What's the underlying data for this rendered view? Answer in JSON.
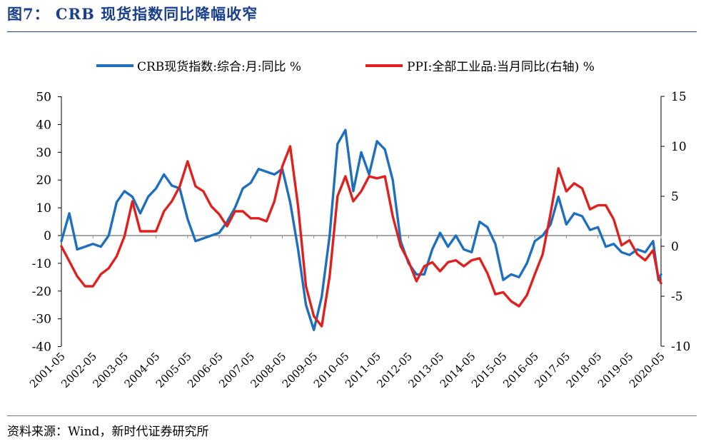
{
  "page": {
    "title": "图7：  CRB 现货指数同比降幅收窄",
    "source": "资料来源：Wind，新时代证券研究所"
  },
  "chart_data": {
    "type": "line",
    "title": "CRB 现货指数同比降幅收窄",
    "legend_position": "top-center",
    "left_axis": {
      "min": -40,
      "max": 50,
      "ticks": [
        50,
        40,
        30,
        20,
        10,
        0,
        -10,
        -20,
        -30,
        -40
      ]
    },
    "right_axis": {
      "min": -10,
      "max": 15,
      "ticks": [
        15,
        10,
        5,
        0,
        -5,
        -10
      ]
    },
    "x_range": [
      "2001-05",
      "2020-05"
    ],
    "x_ticks": [
      "2001-05",
      "2002-05",
      "2003-05",
      "2004-05",
      "2005-05",
      "2006-05",
      "2007-05",
      "2008-05",
      "2009-05",
      "2010-05",
      "2011-05",
      "2012-05",
      "2013-05",
      "2014-05",
      "2015-05",
      "2016-05",
      "2017-05",
      "2018-05",
      "2019-05",
      "2020-05"
    ],
    "series": [
      {
        "name": "CRB现货指数:综合:月:同比 %",
        "axis": "left",
        "color": "#1f6fbf",
        "points": [
          [
            "2001-05",
            -2
          ],
          [
            "2001-08",
            8
          ],
          [
            "2001-11",
            -5
          ],
          [
            "2002-02",
            -4
          ],
          [
            "2002-05",
            -3
          ],
          [
            "2002-08",
            -4
          ],
          [
            "2002-11",
            0
          ],
          [
            "2003-02",
            12
          ],
          [
            "2003-05",
            16
          ],
          [
            "2003-08",
            14
          ],
          [
            "2003-11",
            8
          ],
          [
            "2004-02",
            14
          ],
          [
            "2004-05",
            17
          ],
          [
            "2004-08",
            22
          ],
          [
            "2004-11",
            18
          ],
          [
            "2005-02",
            17
          ],
          [
            "2005-05",
            6
          ],
          [
            "2005-08",
            -2
          ],
          [
            "2005-11",
            -1
          ],
          [
            "2006-02",
            0
          ],
          [
            "2006-05",
            1
          ],
          [
            "2006-08",
            5
          ],
          [
            "2006-11",
            10
          ],
          [
            "2007-02",
            17
          ],
          [
            "2007-05",
            19
          ],
          [
            "2007-08",
            24
          ],
          [
            "2007-11",
            23
          ],
          [
            "2008-02",
            22
          ],
          [
            "2008-05",
            24
          ],
          [
            "2008-08",
            12
          ],
          [
            "2008-11",
            -5
          ],
          [
            "2009-02",
            -25
          ],
          [
            "2009-05",
            -34
          ],
          [
            "2009-08",
            -22
          ],
          [
            "2009-11",
            0
          ],
          [
            "2010-02",
            33
          ],
          [
            "2010-05",
            38
          ],
          [
            "2010-08",
            16
          ],
          [
            "2010-11",
            30
          ],
          [
            "2011-02",
            22
          ],
          [
            "2011-05",
            34
          ],
          [
            "2011-08",
            31
          ],
          [
            "2011-11",
            20
          ],
          [
            "2012-02",
            -2
          ],
          [
            "2012-05",
            -10
          ],
          [
            "2012-08",
            -14
          ],
          [
            "2012-11",
            -14
          ],
          [
            "2013-02",
            -5
          ],
          [
            "2013-05",
            1
          ],
          [
            "2013-08",
            -4
          ],
          [
            "2013-11",
            0
          ],
          [
            "2014-02",
            -5
          ],
          [
            "2014-05",
            -6
          ],
          [
            "2014-08",
            5
          ],
          [
            "2014-11",
            3
          ],
          [
            "2015-02",
            -3
          ],
          [
            "2015-05",
            -16
          ],
          [
            "2015-08",
            -14
          ],
          [
            "2015-11",
            -15
          ],
          [
            "2016-02",
            -10
          ],
          [
            "2016-05",
            -2
          ],
          [
            "2016-08",
            0
          ],
          [
            "2016-11",
            4
          ],
          [
            "2017-02",
            14
          ],
          [
            "2017-05",
            4
          ],
          [
            "2017-08",
            8
          ],
          [
            "2017-11",
            7
          ],
          [
            "2018-02",
            2
          ],
          [
            "2018-05",
            3
          ],
          [
            "2018-08",
            -4
          ],
          [
            "2018-11",
            -3
          ],
          [
            "2019-02",
            -6
          ],
          [
            "2019-05",
            -7
          ],
          [
            "2019-08",
            -5
          ],
          [
            "2019-11",
            -6
          ],
          [
            "2020-02",
            -2
          ],
          [
            "2020-04",
            -16
          ],
          [
            "2020-05",
            -14
          ]
        ]
      },
      {
        "name": "PPI:全部工业品:当月同比(右轴) %",
        "axis": "right",
        "color": "#e0201c",
        "points": [
          [
            "2001-05",
            0
          ],
          [
            "2001-08",
            -1.5
          ],
          [
            "2001-11",
            -3
          ],
          [
            "2002-02",
            -4
          ],
          [
            "2002-05",
            -4
          ],
          [
            "2002-08",
            -2.8
          ],
          [
            "2002-11",
            -2.2
          ],
          [
            "2003-02",
            -1
          ],
          [
            "2003-05",
            1
          ],
          [
            "2003-08",
            4.5
          ],
          [
            "2003-11",
            1.5
          ],
          [
            "2004-02",
            1.5
          ],
          [
            "2004-05",
            1.5
          ],
          [
            "2004-08",
            3.5
          ],
          [
            "2004-11",
            4.5
          ],
          [
            "2005-02",
            6
          ],
          [
            "2005-05",
            8.5
          ],
          [
            "2005-08",
            6
          ],
          [
            "2005-11",
            5.5
          ],
          [
            "2006-02",
            4
          ],
          [
            "2006-05",
            3.2
          ],
          [
            "2006-08",
            2
          ],
          [
            "2006-11",
            3.5
          ],
          [
            "2007-02",
            3.5
          ],
          [
            "2007-05",
            2.8
          ],
          [
            "2007-08",
            2.8
          ],
          [
            "2007-11",
            2.5
          ],
          [
            "2008-02",
            4.5
          ],
          [
            "2008-05",
            8
          ],
          [
            "2008-08",
            10
          ],
          [
            "2008-11",
            4
          ],
          [
            "2009-02",
            -4
          ],
          [
            "2009-05",
            -7
          ],
          [
            "2009-08",
            -8
          ],
          [
            "2009-11",
            -3
          ],
          [
            "2010-02",
            5
          ],
          [
            "2010-05",
            7
          ],
          [
            "2010-08",
            4.5
          ],
          [
            "2010-11",
            5.5
          ],
          [
            "2011-02",
            7
          ],
          [
            "2011-05",
            6.8
          ],
          [
            "2011-08",
            7
          ],
          [
            "2011-11",
            3
          ],
          [
            "2012-02",
            0
          ],
          [
            "2012-05",
            -1.5
          ],
          [
            "2012-08",
            -3.5
          ],
          [
            "2012-11",
            -2
          ],
          [
            "2013-02",
            -1.6
          ],
          [
            "2013-05",
            -2.5
          ],
          [
            "2013-08",
            -1.6
          ],
          [
            "2013-11",
            -1.4
          ],
          [
            "2014-02",
            -2
          ],
          [
            "2014-05",
            -1.4
          ],
          [
            "2014-08",
            -1.2
          ],
          [
            "2014-11",
            -2.7
          ],
          [
            "2015-02",
            -4.8
          ],
          [
            "2015-05",
            -4.6
          ],
          [
            "2015-08",
            -5.5
          ],
          [
            "2015-11",
            -6
          ],
          [
            "2016-02",
            -4.9
          ],
          [
            "2016-05",
            -2.8
          ],
          [
            "2016-08",
            -0.8
          ],
          [
            "2016-11",
            3.3
          ],
          [
            "2017-02",
            7.8
          ],
          [
            "2017-05",
            5.5
          ],
          [
            "2017-08",
            6.3
          ],
          [
            "2017-11",
            5.8
          ],
          [
            "2018-02",
            3.7
          ],
          [
            "2018-05",
            4.1
          ],
          [
            "2018-08",
            4.1
          ],
          [
            "2018-11",
            2.7
          ],
          [
            "2019-02",
            0.1
          ],
          [
            "2019-05",
            0.6
          ],
          [
            "2019-08",
            -0.8
          ],
          [
            "2019-11",
            -1.4
          ],
          [
            "2020-02",
            -0.4
          ],
          [
            "2020-04",
            -3.1
          ],
          [
            "2020-05",
            -3.7
          ]
        ]
      }
    ]
  }
}
